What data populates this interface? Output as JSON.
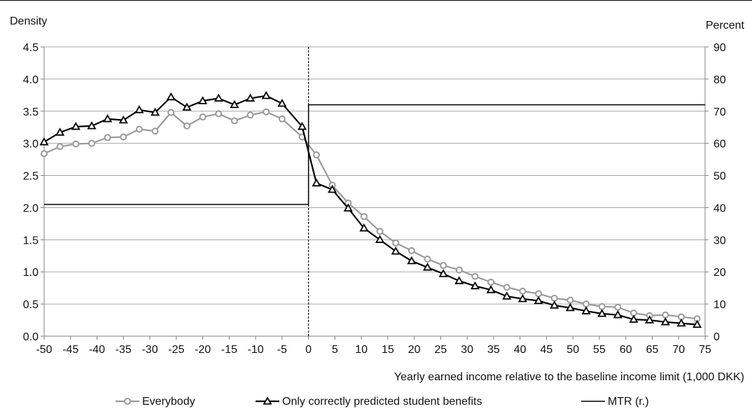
{
  "chart_data": {
    "type": "line",
    "title": "",
    "xlabel": "Yearly earned income relative to the baseline income limit (1,000 DKK)",
    "ylabel": "Density",
    "y2label": "Percent",
    "xlim": [
      -50,
      75
    ],
    "ylim": [
      0,
      4.5
    ],
    "y2lim": [
      0,
      90
    ],
    "xticks": [
      "-50",
      "-45",
      "-40",
      "-35",
      "-30",
      "-25",
      "-20",
      "-15",
      "-10",
      "-5",
      "0",
      "5",
      "10",
      "15",
      "20",
      "25",
      "30",
      "35",
      "40",
      "45",
      "50",
      "55",
      "60",
      "65",
      "70",
      "75"
    ],
    "yticks": [
      "0.0",
      "0.5",
      "1.0",
      "1.5",
      "2.0",
      "2.5",
      "3.0",
      "3.5",
      "4.0",
      "4.5"
    ],
    "y2ticks": [
      "0",
      "10",
      "20",
      "30",
      "40",
      "50",
      "60",
      "70",
      "80",
      "90"
    ],
    "grid": "horizontal",
    "reference_line_x": 0,
    "legend_position": "bottom",
    "series": [
      {
        "name": "Everybody",
        "axis": "left",
        "marker": "circle",
        "color": "#9a9a9a",
        "x": [
          -50,
          -47,
          -44,
          -41,
          -38,
          -35,
          -32,
          -29,
          -26,
          -23,
          -20,
          -17,
          -14,
          -11,
          -8,
          -5,
          -1.2,
          1.5,
          4.5,
          7.5,
          10.5,
          13.5,
          16.5,
          19.5,
          22.5,
          25.5,
          28.5,
          31.5,
          34.5,
          37.5,
          40.5,
          43.5,
          46.5,
          49.5,
          52.5,
          55.5,
          58.5,
          61.5,
          64.5,
          67.5,
          70.5,
          73.5
        ],
        "y": [
          2.84,
          2.95,
          2.99,
          3.0,
          3.09,
          3.1,
          3.22,
          3.19,
          3.48,
          3.27,
          3.41,
          3.46,
          3.35,
          3.44,
          3.49,
          3.38,
          3.1,
          2.82,
          2.35,
          2.07,
          1.86,
          1.63,
          1.45,
          1.33,
          1.2,
          1.1,
          1.03,
          0.93,
          0.84,
          0.76,
          0.7,
          0.66,
          0.59,
          0.56,
          0.5,
          0.46,
          0.45,
          0.36,
          0.32,
          0.33,
          0.3,
          0.27
        ]
      },
      {
        "name": "Only correctly predicted student benefits",
        "axis": "left",
        "marker": "triangle",
        "color": "#000000",
        "x": [
          -50,
          -47,
          -44,
          -41,
          -38,
          -35,
          -32,
          -29,
          -26,
          -23,
          -20,
          -17,
          -14,
          -11,
          -8,
          -5,
          -1.2,
          1.5,
          4.5,
          7.5,
          10.5,
          13.5,
          16.5,
          19.5,
          22.5,
          25.5,
          28.5,
          31.5,
          34.5,
          37.5,
          40.5,
          43.5,
          46.5,
          49.5,
          52.5,
          55.5,
          58.5,
          61.5,
          64.5,
          67.5,
          70.5,
          73.5
        ],
        "y": [
          3.02,
          3.17,
          3.26,
          3.27,
          3.38,
          3.36,
          3.52,
          3.48,
          3.72,
          3.56,
          3.66,
          3.7,
          3.6,
          3.7,
          3.74,
          3.62,
          3.26,
          2.38,
          2.28,
          1.99,
          1.68,
          1.5,
          1.32,
          1.17,
          1.07,
          0.97,
          0.86,
          0.78,
          0.72,
          0.62,
          0.58,
          0.55,
          0.48,
          0.44,
          0.39,
          0.35,
          0.33,
          0.26,
          0.25,
          0.22,
          0.2,
          0.18
        ]
      },
      {
        "name": "MTR (r.)",
        "axis": "right",
        "marker": "none",
        "color": "#000000",
        "step": true,
        "x": [
          -50,
          0,
          0,
          75
        ],
        "y": [
          41,
          41,
          72,
          72
        ]
      }
    ]
  }
}
